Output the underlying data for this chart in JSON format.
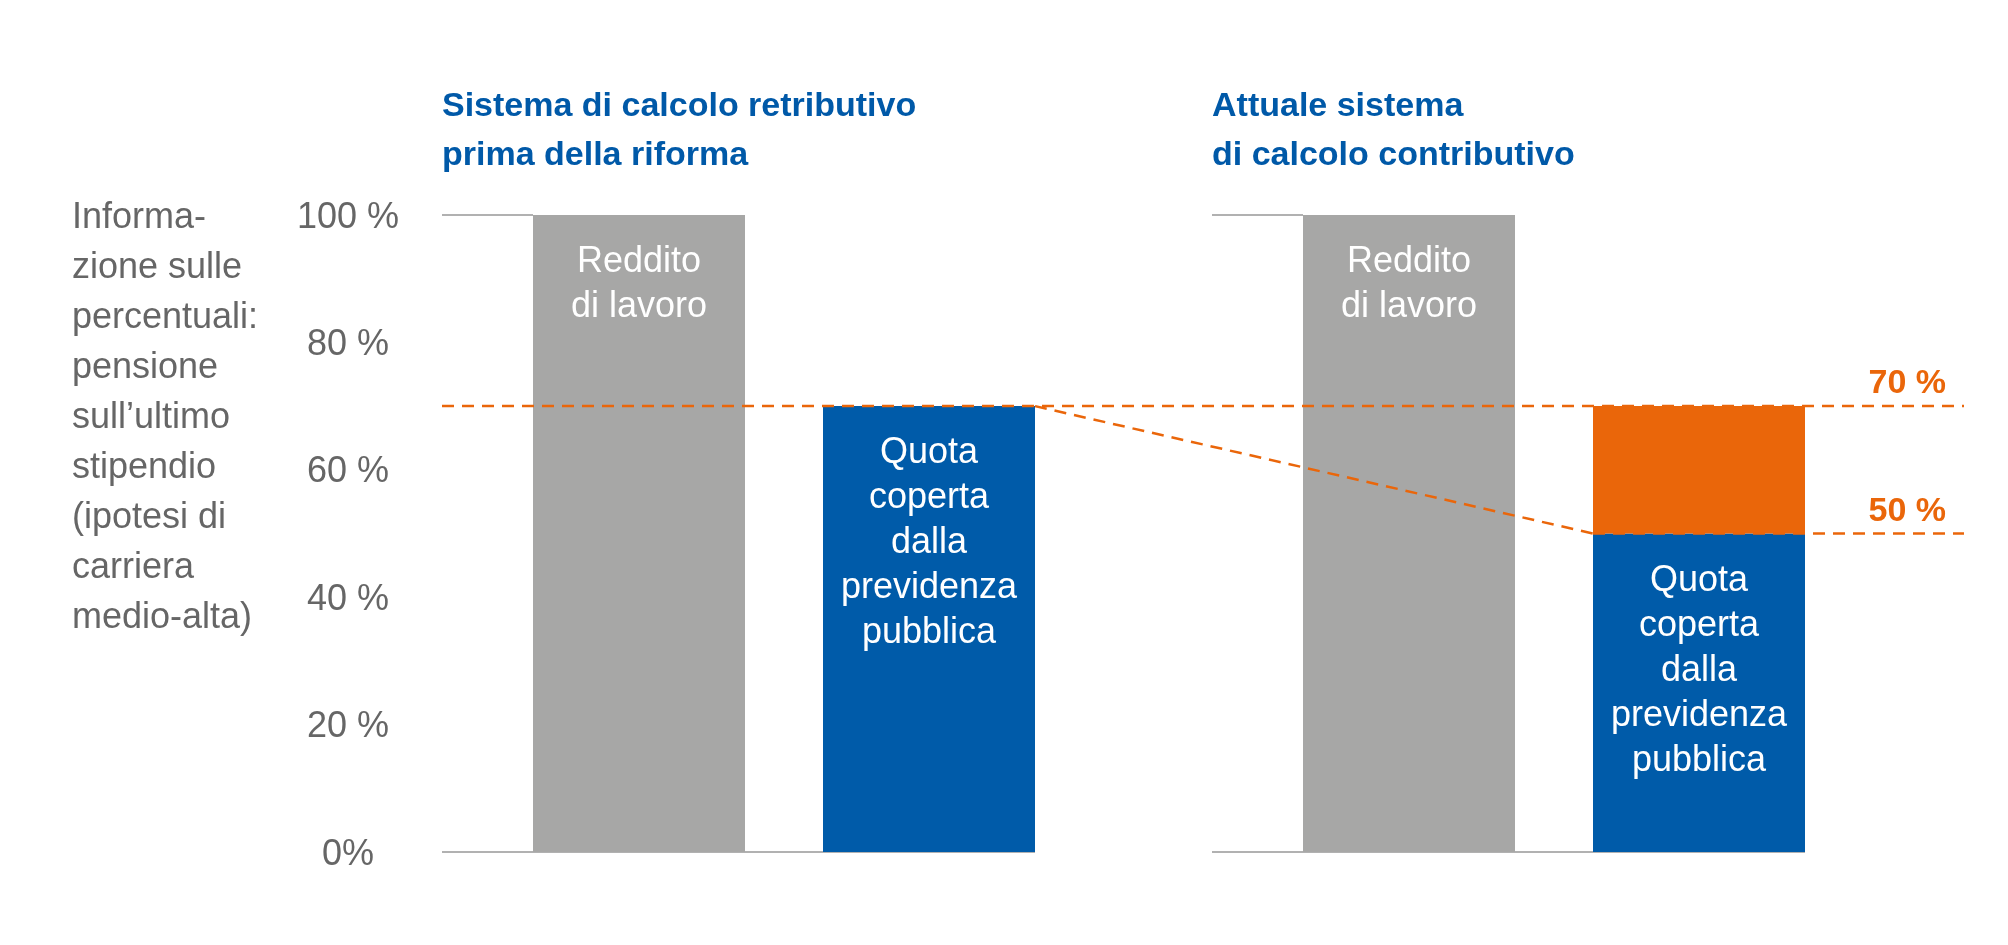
{
  "chart_data": {
    "type": "bar",
    "annotations": [
      "Sistema di calcolo retributivo\nprima della riforma",
      "Attuale sistema\ndi calcolo contributivo"
    ],
    "ylabel": "Informa-\nzione sulle\npercentuali:\npensione\nsull’ultimo\nstipendio\n(ipotesi di\ncarriera\nmedio-alta)",
    "categories": [
      null,
      null,
      null,
      null
    ],
    "series": [
      {
        "name": "Reddito\ndi lavoro",
        "color": "#a7a7a6",
        "values": [
          100,
          null,
          100,
          null
        ]
      },
      {
        "name": "Quota\ncoperta\ndalla\nprevidenza\npubblica",
        "color": "#005ba9",
        "values": [
          null,
          70,
          null,
          50
        ]
      },
      {
        "color": "#ea660a",
        "values": [
          null,
          null,
          null,
          20
        ]
      }
    ],
    "stacked": true,
    "ylim": [
      0,
      100
    ],
    "yticks": [
      {
        "value": 0,
        "label": "0%"
      },
      {
        "value": 20,
        "label": "20 %"
      },
      {
        "value": 40,
        "label": "40 %"
      },
      {
        "value": 60,
        "label": "60 %"
      },
      {
        "value": 80,
        "label": "80 %"
      },
      {
        "value": 100,
        "label": "100 %"
      }
    ],
    "tick_labels": "y",
    "ref_lines": [
      {
        "axis": "y",
        "value": 70,
        "label": "70 %",
        "color": "#ea660a",
        "line_style": "dashed"
      },
      {
        "axis": "y",
        "value": 50,
        "label": "50 %",
        "color": "#ea660a",
        "line_style": "dashed"
      }
    ]
  }
}
